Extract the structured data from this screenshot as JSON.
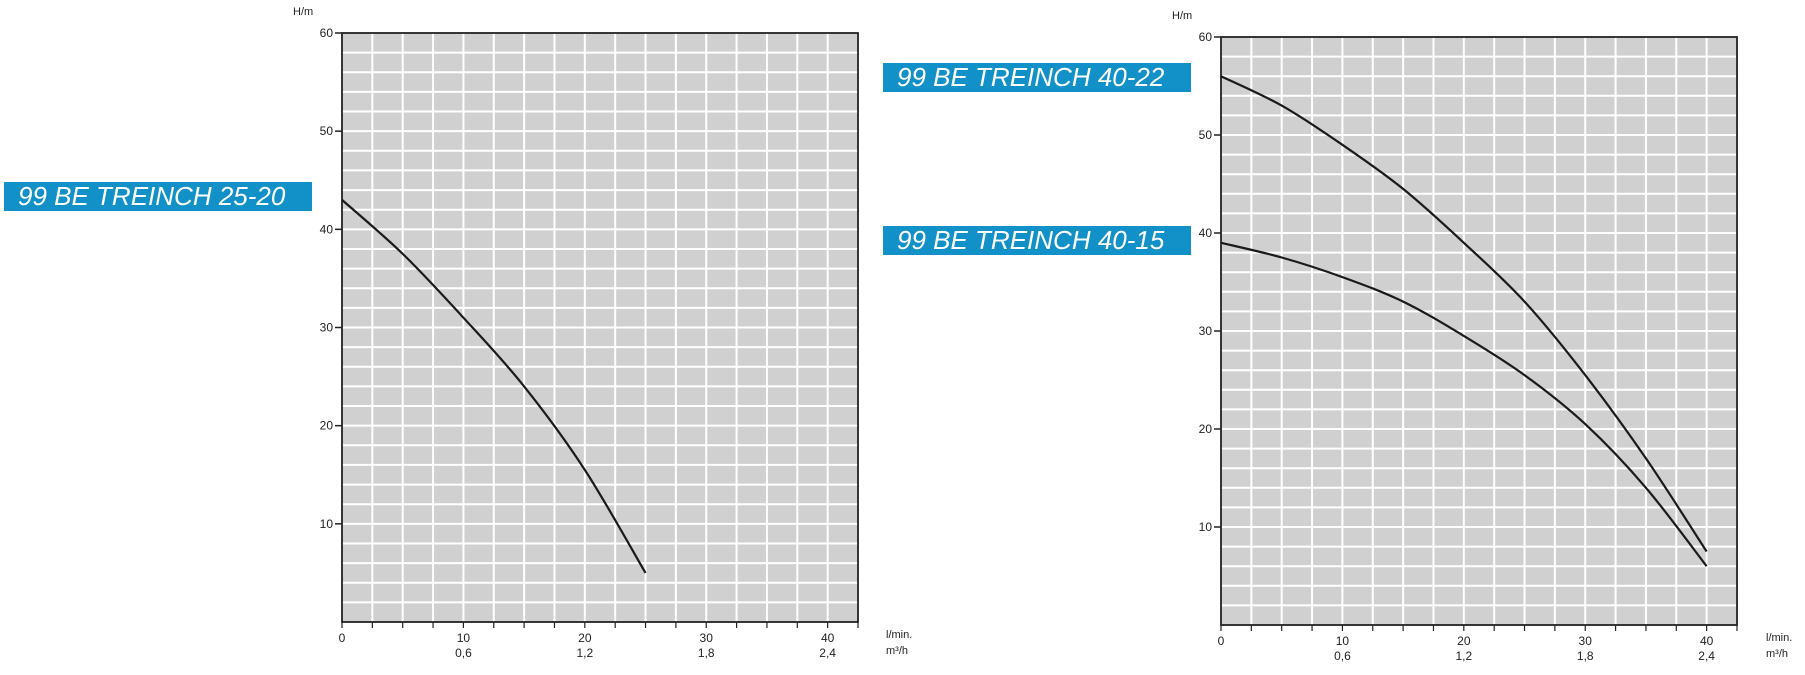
{
  "labels": {
    "left": "99 BE TREINCH 25-20",
    "right_top": "99 BE TREINCH 40-22",
    "right_mid": "99 BE TREINCH 40-15"
  },
  "colors": {
    "plot_bg": "#d0d0d1",
    "grid": "#ffffff",
    "curve": "#1a1a1a",
    "label_bg": "#1290c8"
  },
  "chart_data": [
    {
      "type": "line",
      "ylabel": "H/m",
      "xlabel_top": "l/min.",
      "xlabel_bottom": "m³/h",
      "xlim": [
        0,
        42.5
      ],
      "ylim": [
        0,
        60
      ],
      "y_ticks": [
        "10",
        "20",
        "30",
        "40",
        "50",
        "60"
      ],
      "x_ticks": [
        "0",
        "10",
        "20",
        "30",
        "40"
      ],
      "x_ticks_secondary": [
        "0,6",
        "1,2",
        "1,8",
        "2,4"
      ],
      "grid": true,
      "series": [
        {
          "x": [
            0,
            5,
            10,
            15,
            20,
            25
          ],
          "y": [
            43,
            37.5,
            31,
            24,
            15.5,
            5
          ]
        }
      ]
    },
    {
      "type": "line",
      "ylabel": "H/m",
      "xlabel_top": "l/min.",
      "xlabel_bottom": "m³/h",
      "xlim": [
        0,
        42.5
      ],
      "ylim": [
        0,
        60
      ],
      "y_ticks": [
        "10",
        "20",
        "30",
        "40",
        "50",
        "60"
      ],
      "x_ticks": [
        "0",
        "10",
        "20",
        "30",
        "40"
      ],
      "x_ticks_secondary": [
        "0,6",
        "1,2",
        "1,8",
        "2,4"
      ],
      "grid": true,
      "series": [
        {
          "x": [
            0,
            5,
            10,
            15,
            20,
            25,
            30,
            35,
            40
          ],
          "y": [
            56,
            53,
            49,
            44.5,
            39,
            33,
            25.5,
            17,
            7.5
          ]
        },
        {
          "x": [
            0,
            5,
            10,
            15,
            20,
            25,
            30,
            35,
            40
          ],
          "y": [
            39,
            37.5,
            35.5,
            33,
            29.5,
            25.5,
            20.5,
            14,
            6
          ]
        }
      ]
    }
  ]
}
